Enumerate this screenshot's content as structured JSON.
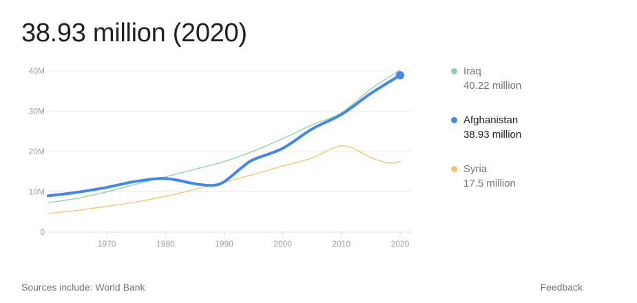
{
  "headline": "38.93 million (2020)",
  "chart_data": {
    "type": "line",
    "x_ticks": [
      "1970",
      "1980",
      "1990",
      "2000",
      "2010",
      "2020"
    ],
    "y_ticks": [
      "0",
      "10M",
      "20M",
      "30M",
      "40M"
    ],
    "xlim": [
      1960,
      2022
    ],
    "ylim": [
      0,
      40
    ],
    "y_unit": "millions",
    "grid": true,
    "legend_position": "right",
    "series": [
      {
        "name": "Iraq",
        "color": "#8fd19e",
        "latest": "40.22 million",
        "x": [
          1960,
          1965,
          1970,
          1975,
          1980,
          1985,
          1990,
          1995,
          2000,
          2005,
          2010,
          2015,
          2020
        ],
        "values": [
          7.3,
          8.4,
          10.0,
          11.9,
          13.7,
          15.6,
          17.5,
          20.1,
          23.2,
          26.6,
          29.6,
          35.5,
          40.22
        ]
      },
      {
        "name": "Afghanistan",
        "color": "#4285f4",
        "latest": "38.93 million",
        "x": [
          1960,
          1965,
          1970,
          1975,
          1980,
          1985,
          1988,
          1990,
          1993,
          1995,
          2000,
          2005,
          2010,
          2015,
          2020
        ],
        "values": [
          9.0,
          9.9,
          11.1,
          12.6,
          13.3,
          12.0,
          11.6,
          12.5,
          16.0,
          18.0,
          20.8,
          25.6,
          29.2,
          34.4,
          38.93
        ]
      },
      {
        "name": "Syria",
        "color": "#f6c26b",
        "latest": "17.5 million",
        "x": [
          1960,
          1965,
          1970,
          1975,
          1980,
          1985,
          1990,
          1995,
          2000,
          2005,
          2008,
          2010,
          2012,
          2015,
          2018,
          2020
        ],
        "values": [
          4.6,
          5.4,
          6.4,
          7.5,
          8.9,
          10.6,
          12.4,
          14.3,
          16.4,
          18.4,
          20.5,
          21.4,
          20.8,
          18.5,
          17.2,
          17.5
        ]
      }
    ]
  },
  "legend": {
    "items": [
      {
        "name": "Iraq",
        "value": "40.22 million",
        "color": "#8fd19e"
      },
      {
        "name": "Afghanistan",
        "value": "38.93 million",
        "color": "#4285f4"
      },
      {
        "name": "Syria",
        "value": "17.5 million",
        "color": "#f6c26b"
      }
    ]
  },
  "footer": {
    "sources": "Sources include: World Bank",
    "feedback": "Feedback"
  }
}
